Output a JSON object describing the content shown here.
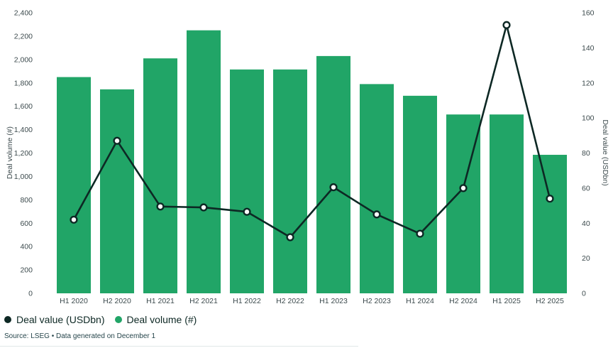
{
  "chart_data": {
    "type": "bar+line combo",
    "categories": [
      "H1 2020",
      "H2 2020",
      "H1 2021",
      "H2 2021",
      "H1 2022",
      "H2 2022",
      "H1 2023",
      "H2 2023",
      "H1 2024",
      "H2 2024",
      "H1 2025",
      "H2 2025"
    ],
    "series": [
      {
        "name": "Deal volume (#)",
        "type": "bar",
        "axis": "left",
        "color": "#21a567",
        "values": [
          1850,
          1745,
          2010,
          2250,
          1915,
          1915,
          2030,
          1790,
          1690,
          1530,
          1530,
          1185
        ]
      },
      {
        "name": "Deal value (USDbn)",
        "type": "line",
        "axis": "right",
        "color": "#0d2824",
        "values": [
          42,
          87,
          49.5,
          49,
          46.5,
          32,
          60.5,
          45,
          34,
          60,
          153,
          54
        ]
      }
    ],
    "left_axis": {
      "label": "Deal volume (#)",
      "min": 0,
      "max": 2400,
      "step": 200
    },
    "right_axis": {
      "label": "Deal value (USDbn)",
      "min": 0,
      "max": 160,
      "step": 20
    },
    "grid": false,
    "legend_position": "bottom-left",
    "point_style": {
      "fill": "#ffffff",
      "stroke": "#0d2824"
    }
  },
  "legend": {
    "items": [
      {
        "label": "Deal value (USDbn)",
        "color": "#0d2824"
      },
      {
        "label": "Deal volume (#)",
        "color": "#21a567"
      }
    ]
  },
  "footer": {
    "source": "Source: LSEG • Data generated on December 1"
  }
}
